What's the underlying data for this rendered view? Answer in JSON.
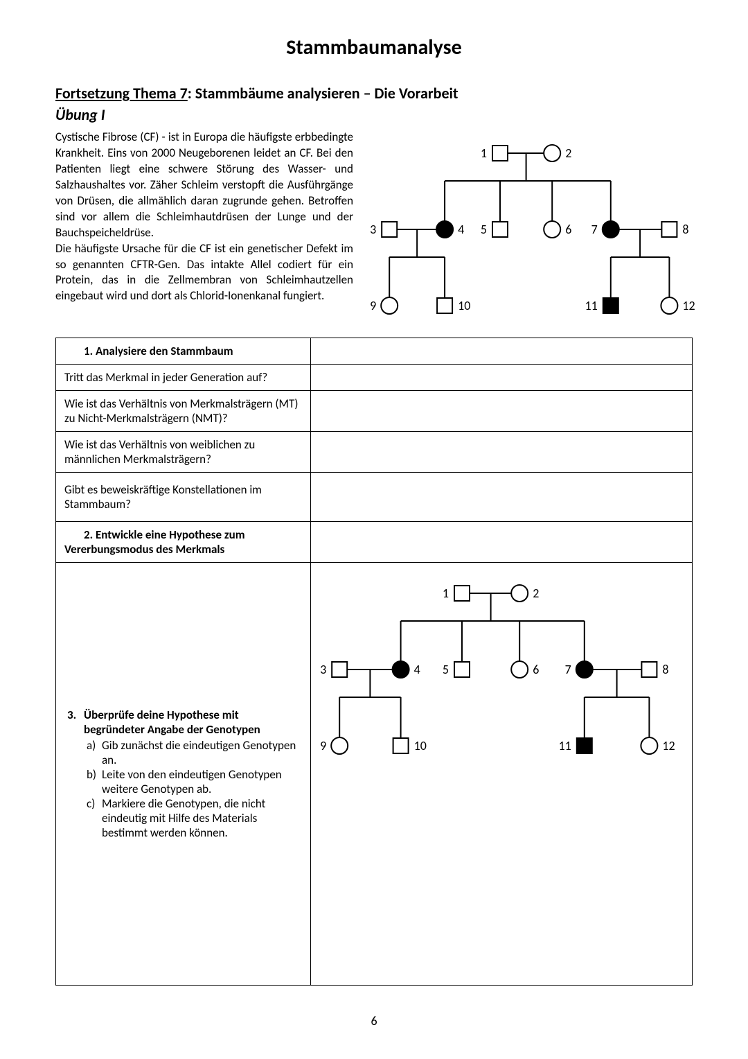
{
  "page_title": "Stammbaumanalyse",
  "section_heading_prefix": "Fortsetzung Thema 7",
  "section_heading_rest": ": Stammbäume analysieren – Die Vorarbeit",
  "exercise_label": "Übung I",
  "intro_paragraph_1": "Cystische Fibrose (CF) - ist in Europa die häufigste erbbedingte Krankheit. Eins von 2000 Neugeborenen leidet an CF. Bei den Patienten liegt eine schwere Störung des Wasser- und Salzhaushaltes vor. Zäher Schleim verstopft die Ausführgänge von Drüsen, die allmählich daran zugrunde gehen. Betroffen sind vor allem die Schleimhautdrüsen der Lunge und der Bauchspeicheldrüse.",
  "intro_paragraph_2": "Die häufigste Ursache für die CF ist ein genetischer Defekt im so genannten CFTR-Gen. Das intakte Allel codiert für ein Protein, das in die Zellmembran von Schleimhautzellen eingebaut wird und dort als Chlorid-Ionenkanal fungiert.",
  "task1_label": "1.   Analysiere den Stammbaum",
  "q1": "Tritt das Merkmal in jeder Generation auf?",
  "q2": "Wie ist das Verhältnis von Merkmalsträgern (MT) zu Nicht-Merkmalsträgern (NMT)?",
  "q3": "Wie ist das Verhältnis von weiblichen zu männlichen Merkmalsträgern?",
  "q4": "Gibt es beweiskräftige Konstellationen im Stammbaum?",
  "task2_label": "2.   Entwickle eine Hypothese zum Vererbungsmodus des Merkmals",
  "task3_heading_1": "3.",
  "task3_heading_2": "Überprüfe deine Hypothese mit begründeter Angabe der Genotypen",
  "task3_a": "Gib zunächst die eindeutigen Genotypen an.",
  "task3_b": "Leite von den eindeutigen Genotypen weitere Genotypen ab.",
  "task3_c": "Markiere die Genotypen, die nicht eindeutig mit Hilfe des Materials bestimmt werden können.",
  "page_number": "6",
  "pedigree": {
    "stroke": "#000000",
    "stroke_width": 2,
    "fill_affected": "#000000",
    "fill_unaffected": "#ffffff",
    "label_font_size": 18,
    "symbol_size": 22,
    "circle_r": 12,
    "nodes": [
      {
        "id": 1,
        "shape": "square",
        "affected": false,
        "label": "1",
        "label_side": "left"
      },
      {
        "id": 2,
        "shape": "circle",
        "affected": false,
        "label": "2",
        "label_side": "right"
      },
      {
        "id": 3,
        "shape": "square",
        "affected": false,
        "label": "3",
        "label_side": "left"
      },
      {
        "id": 4,
        "shape": "circle",
        "affected": true,
        "label": "4",
        "label_side": "right"
      },
      {
        "id": 5,
        "shape": "square",
        "affected": false,
        "label": "5",
        "label_side": "left"
      },
      {
        "id": 6,
        "shape": "circle",
        "affected": false,
        "label": "6",
        "label_side": "right"
      },
      {
        "id": 7,
        "shape": "circle",
        "affected": true,
        "label": "7",
        "label_side": "left"
      },
      {
        "id": 8,
        "shape": "square",
        "affected": false,
        "label": "8",
        "label_side": "right"
      },
      {
        "id": 9,
        "shape": "circle",
        "affected": false,
        "label": "9",
        "label_side": "left"
      },
      {
        "id": 10,
        "shape": "square",
        "affected": false,
        "label": "10",
        "label_side": "right"
      },
      {
        "id": 11,
        "shape": "square",
        "affected": true,
        "label": "11",
        "label_side": "left"
      },
      {
        "id": 12,
        "shape": "circle",
        "affected": false,
        "label": "12",
        "label_side": "right"
      }
    ]
  }
}
